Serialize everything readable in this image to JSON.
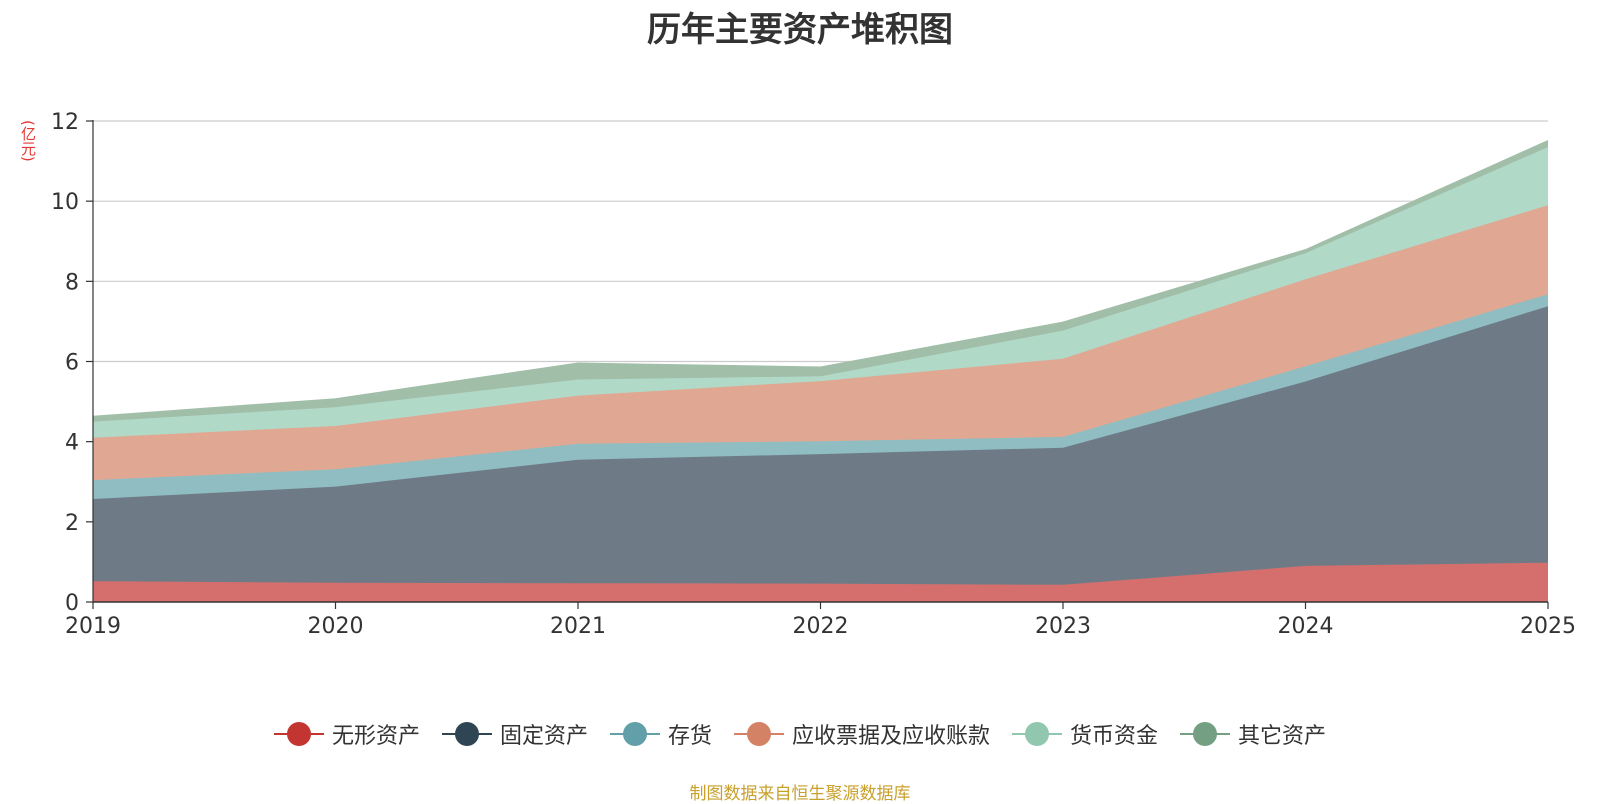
{
  "chart_data": {
    "type": "area",
    "stacked": true,
    "title": "历年主要资产堆积图",
    "ylabel": "(亿元)",
    "xlabel": "",
    "x": [
      "2019",
      "2020",
      "2021",
      "2022",
      "2023",
      "2024",
      "2025"
    ],
    "ylim": [
      0,
      12
    ],
    "yticks": [
      "0",
      "2",
      "4",
      "6",
      "8",
      "10",
      "12"
    ],
    "grid": true,
    "legend_position": "bottom",
    "series": [
      {
        "name": "无形资产",
        "color": "#c23531",
        "fill": "#d56f6d",
        "values": [
          0.52,
          0.48,
          0.47,
          0.46,
          0.43,
          0.9,
          0.98
        ]
      },
      {
        "name": "固定资产",
        "color": "#2f4554",
        "fill": "#6e7b86",
        "values": [
          2.05,
          2.4,
          3.08,
          3.23,
          3.42,
          4.6,
          6.4
        ]
      },
      {
        "name": "存货",
        "color": "#61a0a8",
        "fill": "#90bdc2",
        "values": [
          0.47,
          0.43,
          0.4,
          0.32,
          0.27,
          0.38,
          0.3
        ]
      },
      {
        "name": "应收票据及应收账款",
        "color": "#d48265",
        "fill": "#e0a892",
        "values": [
          1.06,
          1.08,
          1.2,
          1.5,
          1.95,
          2.17,
          2.22
        ]
      },
      {
        "name": "货币资金",
        "color": "#91c7ae",
        "fill": "#b1d9c8",
        "values": [
          0.4,
          0.47,
          0.4,
          0.12,
          0.7,
          0.65,
          1.45
        ]
      },
      {
        "name": "其它资产",
        "color": "#749f83",
        "fill": "#a1bea9",
        "values": [
          0.12,
          0.2,
          0.4,
          0.22,
          0.2,
          0.08,
          0.15
        ]
      }
    ]
  },
  "footer": {
    "source": "制图数据来自恒生聚源数据库"
  }
}
